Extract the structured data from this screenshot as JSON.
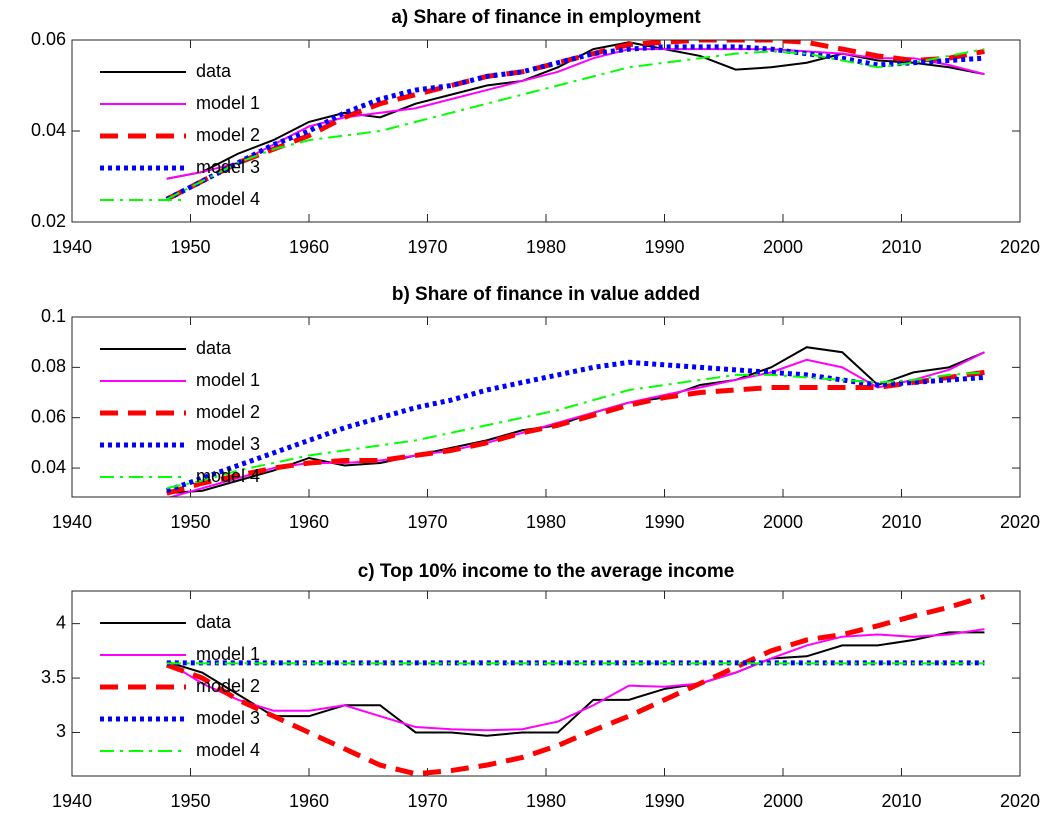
{
  "chart_data": [
    {
      "type": "line",
      "title": "a) Share of finance in employment",
      "x": [
        1948,
        1951,
        1954,
        1957,
        1960,
        1963,
        1966,
        1969,
        1972,
        1975,
        1978,
        1981,
        1984,
        1987,
        1990,
        1993,
        1996,
        1999,
        2002,
        2005,
        2008,
        2011,
        2014,
        2017
      ],
      "xlim": [
        1940,
        2020
      ],
      "xticks": [
        1940,
        1950,
        1960,
        1970,
        1980,
        1990,
        2000,
        2010,
        2020
      ],
      "ylim": [
        0.02,
        0.06
      ],
      "yticks": [
        0.02,
        0.04,
        0.06
      ],
      "grid": false,
      "legend": "upper left",
      "series": [
        {
          "name": "data",
          "color": "#000000",
          "style": "solid",
          "linewidth": 2,
          "values": [
            0.0295,
            0.031,
            0.035,
            0.038,
            0.042,
            0.044,
            0.043,
            0.046,
            0.048,
            0.05,
            0.051,
            0.054,
            0.058,
            0.0595,
            0.058,
            0.0565,
            0.0535,
            0.054,
            0.055,
            0.057,
            0.0555,
            0.055,
            0.054,
            0.0525
          ]
        },
        {
          "name": "model 1",
          "color": "#ff00ff",
          "style": "solid",
          "linewidth": 2,
          "values": [
            0.0295,
            0.031,
            0.033,
            0.037,
            0.041,
            0.043,
            0.044,
            0.045,
            0.047,
            0.049,
            0.051,
            0.053,
            0.056,
            0.058,
            0.058,
            0.058,
            0.058,
            0.058,
            0.0575,
            0.057,
            0.056,
            0.056,
            0.0545,
            0.0525
          ]
        },
        {
          "name": "model 2",
          "color": "#ff0000",
          "style": "dashed",
          "linewidth": 5,
          "values": [
            0.025,
            0.029,
            0.033,
            0.036,
            0.039,
            0.043,
            0.046,
            0.048,
            0.05,
            0.052,
            0.053,
            0.055,
            0.057,
            0.059,
            0.0595,
            0.06,
            0.06,
            0.06,
            0.0595,
            0.058,
            0.0565,
            0.0555,
            0.056,
            0.0575
          ]
        },
        {
          "name": "model 3",
          "color": "#0000ff",
          "style": "dotted",
          "linewidth": 5,
          "values": [
            0.025,
            0.029,
            0.033,
            0.037,
            0.04,
            0.044,
            0.047,
            0.049,
            0.05,
            0.052,
            0.053,
            0.055,
            0.057,
            0.058,
            0.0585,
            0.0585,
            0.0585,
            0.058,
            0.057,
            0.056,
            0.0545,
            0.055,
            0.0555,
            0.056
          ]
        },
        {
          "name": "model 4",
          "color": "#00ff00",
          "style": "dashdot",
          "linewidth": 2,
          "values": [
            0.025,
            0.029,
            0.033,
            0.036,
            0.038,
            0.039,
            0.04,
            0.042,
            0.044,
            0.046,
            0.048,
            0.05,
            0.052,
            0.054,
            0.055,
            0.056,
            0.057,
            0.0575,
            0.057,
            0.0555,
            0.054,
            0.055,
            0.0565,
            0.058
          ]
        }
      ]
    },
    {
      "type": "line",
      "title": "b) Share of finance in value added",
      "x": [
        1948,
        1951,
        1954,
        1957,
        1960,
        1963,
        1966,
        1969,
        1972,
        1975,
        1978,
        1981,
        1984,
        1987,
        1990,
        1993,
        1996,
        1999,
        2002,
        2005,
        2008,
        2011,
        2014,
        2017
      ],
      "xlim": [
        1940,
        2020
      ],
      "xticks": [
        1940,
        1950,
        1960,
        1970,
        1980,
        1990,
        2000,
        2010,
        2020
      ],
      "ylim": [
        0.0285,
        0.1
      ],
      "yticks": [
        0.04,
        0.06,
        0.08,
        0.1
      ],
      "grid": false,
      "legend": "upper left",
      "series": [
        {
          "name": "data",
          "color": "#000000",
          "style": "solid",
          "linewidth": 2,
          "values": [
            0.03,
            0.031,
            0.035,
            0.039,
            0.044,
            0.041,
            0.042,
            0.045,
            0.048,
            0.051,
            0.055,
            0.057,
            0.062,
            0.066,
            0.068,
            0.073,
            0.075,
            0.08,
            0.088,
            0.086,
            0.073,
            0.078,
            0.08,
            0.086
          ]
        },
        {
          "name": "model 1",
          "color": "#ff00ff",
          "style": "solid",
          "linewidth": 2,
          "values": [
            0.028,
            0.032,
            0.036,
            0.04,
            0.042,
            0.042,
            0.043,
            0.045,
            0.047,
            0.05,
            0.054,
            0.058,
            0.062,
            0.066,
            0.069,
            0.072,
            0.075,
            0.078,
            0.083,
            0.08,
            0.072,
            0.075,
            0.079,
            0.086
          ]
        },
        {
          "name": "model 2",
          "color": "#ff0000",
          "style": "dashed",
          "linewidth": 5,
          "values": [
            0.03,
            0.034,
            0.037,
            0.04,
            0.042,
            0.043,
            0.043,
            0.045,
            0.047,
            0.05,
            0.054,
            0.057,
            0.061,
            0.065,
            0.068,
            0.07,
            0.071,
            0.072,
            0.072,
            0.072,
            0.072,
            0.074,
            0.076,
            0.078
          ]
        },
        {
          "name": "model 3",
          "color": "#0000ff",
          "style": "dotted",
          "linewidth": 5,
          "values": [
            0.031,
            0.036,
            0.041,
            0.046,
            0.051,
            0.056,
            0.06,
            0.064,
            0.067,
            0.071,
            0.074,
            0.077,
            0.08,
            0.082,
            0.081,
            0.08,
            0.079,
            0.078,
            0.077,
            0.075,
            0.073,
            0.074,
            0.075,
            0.076
          ]
        },
        {
          "name": "model 4",
          "color": "#00ff00",
          "style": "dashdot",
          "linewidth": 2,
          "values": [
            0.032,
            0.035,
            0.039,
            0.042,
            0.045,
            0.047,
            0.049,
            0.051,
            0.054,
            0.057,
            0.06,
            0.063,
            0.067,
            0.071,
            0.073,
            0.075,
            0.077,
            0.077,
            0.076,
            0.075,
            0.074,
            0.075,
            0.077,
            0.078
          ]
        }
      ]
    },
    {
      "type": "line",
      "title": "c) Top 10% income to the average income",
      "x": [
        1948,
        1951,
        1954,
        1957,
        1960,
        1963,
        1966,
        1969,
        1972,
        1975,
        1978,
        1981,
        1984,
        1987,
        1990,
        1993,
        1996,
        1999,
        2002,
        2005,
        2008,
        2011,
        2014,
        2017
      ],
      "xlim": [
        1940,
        2020
      ],
      "xticks": [
        1940,
        1950,
        1960,
        1970,
        1980,
        1990,
        2000,
        2010,
        2020
      ],
      "ylim": [
        2.6,
        4.3
      ],
      "yticks": [
        3,
        3.5,
        4
      ],
      "grid": false,
      "legend": "upper left",
      "series": [
        {
          "name": "data",
          "color": "#000000",
          "style": "solid",
          "linewidth": 2,
          "values": [
            3.65,
            3.55,
            3.35,
            3.15,
            3.15,
            3.25,
            3.25,
            3.0,
            3.0,
            2.97,
            3.0,
            3.0,
            3.3,
            3.3,
            3.4,
            3.45,
            3.55,
            3.68,
            3.7,
            3.8,
            3.8,
            3.85,
            3.92,
            3.92
          ]
        },
        {
          "name": "model 1",
          "color": "#ff00ff",
          "style": "solid",
          "linewidth": 2,
          "values": [
            3.65,
            3.45,
            3.3,
            3.2,
            3.2,
            3.25,
            3.15,
            3.05,
            3.03,
            3.02,
            3.03,
            3.1,
            3.25,
            3.43,
            3.42,
            3.45,
            3.55,
            3.68,
            3.8,
            3.88,
            3.9,
            3.88,
            3.9,
            3.95
          ]
        },
        {
          "name": "model 2",
          "color": "#ff0000",
          "style": "dashed",
          "linewidth": 5,
          "values": [
            3.62,
            3.5,
            3.3,
            3.15,
            3.0,
            2.85,
            2.7,
            2.62,
            2.65,
            2.7,
            2.77,
            2.88,
            3.02,
            3.15,
            3.3,
            3.45,
            3.6,
            3.75,
            3.85,
            3.9,
            3.98,
            4.07,
            4.15,
            4.25
          ]
        },
        {
          "name": "model 3",
          "color": "#0000ff",
          "style": "dotted",
          "linewidth": 5,
          "values": [
            3.64,
            3.64,
            3.64,
            3.64,
            3.64,
            3.64,
            3.64,
            3.64,
            3.64,
            3.64,
            3.64,
            3.64,
            3.64,
            3.64,
            3.64,
            3.64,
            3.64,
            3.64,
            3.64,
            3.64,
            3.64,
            3.64,
            3.64,
            3.64
          ]
        },
        {
          "name": "model 4",
          "color": "#00ff00",
          "style": "dashdot",
          "linewidth": 2,
          "values": [
            3.635,
            3.635,
            3.635,
            3.635,
            3.635,
            3.635,
            3.635,
            3.635,
            3.635,
            3.635,
            3.635,
            3.635,
            3.635,
            3.635,
            3.635,
            3.635,
            3.635,
            3.635,
            3.635,
            3.635,
            3.635,
            3.635,
            3.635,
            3.635
          ]
        }
      ]
    }
  ]
}
